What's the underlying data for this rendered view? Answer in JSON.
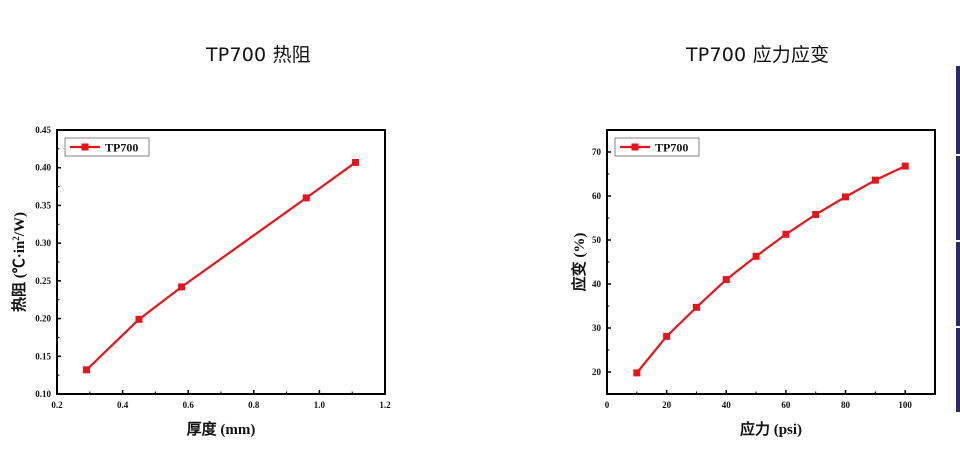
{
  "chart_data": [
    {
      "type": "line",
      "title": "TP700  热阻",
      "xlabel": "厚度 (mm)",
      "ylabel": "热阻 (℃·in²/W)",
      "xlim": [
        0.2,
        1.2
      ],
      "ylim": [
        0.1,
        0.45
      ],
      "xticks": [
        "0.2",
        "0.4",
        "0.6",
        "0.8",
        "1.0",
        "1.2"
      ],
      "yticks": [
        "0.10",
        "0.15",
        "0.20",
        "0.25",
        "0.30",
        "0.35",
        "0.40",
        "0.45"
      ],
      "legend": "top-left",
      "grid": false,
      "series": [
        {
          "name": "TP700",
          "color": "#e8141c",
          "marker": "square",
          "x": [
            0.29,
            0.45,
            0.58,
            0.96,
            1.11
          ],
          "y": [
            0.132,
            0.199,
            0.242,
            0.36,
            0.407
          ]
        }
      ]
    },
    {
      "type": "line",
      "title": "TP700  应力应变",
      "xlabel": "应力 (psi)",
      "ylabel": "应变 (%)",
      "xlim": [
        0,
        110
      ],
      "ylim": [
        15,
        75
      ],
      "xticks": [
        "0",
        "20",
        "40",
        "60",
        "80",
        "100"
      ],
      "yticks": [
        "20",
        "30",
        "40",
        "50",
        "60",
        "70"
      ],
      "legend": "top-left",
      "grid": false,
      "series": [
        {
          "name": "TP700",
          "color": "#e8141c",
          "marker": "square",
          "x": [
            10,
            20,
            30,
            40,
            50,
            60,
            70,
            80,
            90,
            100
          ],
          "y": [
            19.8,
            28.1,
            34.7,
            41.0,
            46.3,
            51.3,
            55.8,
            59.8,
            63.6,
            66.8
          ]
        }
      ]
    }
  ],
  "page": {
    "title_left": "TP700  热阻",
    "title_right": "TP700  应力应变",
    "ylabel_left_prefix": "热阻 (℃·in",
    "ylabel_left_sup": "2",
    "ylabel_left_suffix": "/W)"
  }
}
